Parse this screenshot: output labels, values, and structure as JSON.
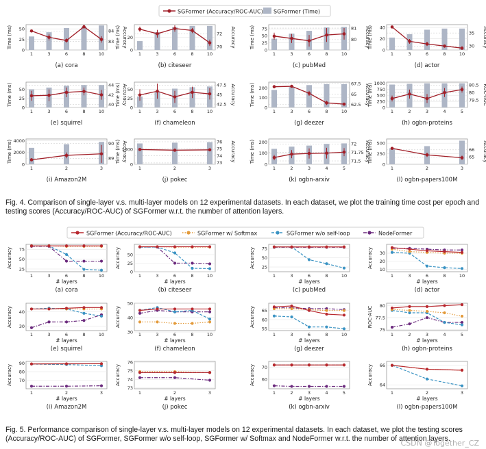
{
  "figure4": {
    "legend": {
      "line": "SGFormer (Accuracy/ROC-AUC)",
      "bar": "SGFormer (Time)"
    },
    "caption": "Fig. 4. Comparison of single-layer v.s. multi-layer models on 12 experimental datasets. In each dataset, we plot the training time cost per epoch and testing scores (Accuracy/ROC-AUC) of SGFormer w.r.t. the number of attention layers.",
    "colors": {
      "line": "#a11f28",
      "bar": "#aeb6c6"
    }
  },
  "figure5": {
    "legend": [
      "SGFormer (Accuracy/ROC-AUC)",
      "SGFormer w/ Softmax",
      "SGFormer w/o self-loop",
      "NodeFormer"
    ],
    "caption": "Fig. 5. Performance comparison of single-layer v.s. multi-layer models on 12 experimental datasets. In each dataset, we plot the testing scores (Accuracy/ROC-AUC) of SGFormer, SGFormer w/o self-loop, SGFormer w/ Softmax and NodeFormer w.r.t. the number of attention layers.",
    "xlabel": "# layers",
    "colors": {
      "sgformer": "#b8282f",
      "softmax": "#e39a3a",
      "noselfloop": "#3a93c3",
      "nodeformer": "#6b2a7d"
    }
  },
  "watermark": "CSDN @Together_CZ",
  "chart_data": [
    {
      "type": "bar",
      "title": "(a) cora",
      "x": [
        1,
        3,
        6,
        8,
        10
      ],
      "ylabel": "Time (ms)",
      "ylabel2": "Accuracy",
      "ylim": [
        0,
        60
      ],
      "yticks": [
        0,
        25,
        50
      ],
      "ylim2": [
        82.2,
        84.6
      ],
      "yticks2": [
        83,
        84
      ],
      "time": [
        32,
        42,
        52,
        55,
        58
      ],
      "score": [
        84.0,
        83.4,
        83.1,
        84.4,
        83.2
      ],
      "err": [
        0.1,
        0.3,
        0.2,
        0.2,
        0.3
      ]
    },
    {
      "type": "bar",
      "title": "(b) citeseer",
      "x": [
        1,
        3,
        6,
        8,
        10
      ],
      "ylabel": "Time (ms)",
      "ylabel2": "Accuracy",
      "ylim": [
        0,
        40
      ],
      "yticks": [
        0,
        20
      ],
      "ylim2": [
        69.5,
        73.4
      ],
      "yticks2": [
        70,
        72
      ],
      "time": [
        14,
        28,
        36,
        38,
        38
      ],
      "score": [
        72.7,
        72.0,
        72.8,
        72.5,
        70.6
      ],
      "err": [
        0.4,
        0.6,
        0.5,
        0.4,
        0.5
      ]
    },
    {
      "type": "bar",
      "title": "(c) pubMed",
      "x": [
        1,
        3,
        6,
        8,
        10
      ],
      "ylabel": "Time (ms)",
      "ylabel2": "Accuracy",
      "ylim": [
        0,
        90
      ],
      "yticks": [
        0,
        25,
        50,
        75
      ],
      "ylim2": [
        79.1,
        81.3
      ],
      "yticks2": [
        80,
        81
      ],
      "time": [
        40,
        58,
        68,
        80,
        82
      ],
      "score": [
        80.3,
        80.1,
        79.9,
        80.4,
        80.5
      ],
      "err": [
        0.3,
        0.4,
        0.5,
        0.6,
        0.5
      ]
    },
    {
      "type": "bar",
      "title": "(d) actor",
      "x": [
        1,
        3,
        6,
        8,
        10
      ],
      "ylabel": "Time (ms)",
      "ylabel2": "Accuracy",
      "ylim": [
        0,
        45
      ],
      "yticks": [
        0,
        20,
        40
      ],
      "ylim2": [
        28.5,
        38.2
      ],
      "yticks2": [
        30,
        35
      ],
      "time": [
        22,
        28,
        36,
        38,
        38
      ],
      "score": [
        37.3,
        31.8,
        30.8,
        30.0,
        29.2
      ],
      "err": [
        0.5,
        0.9,
        0.8,
        0.6,
        0.7
      ]
    },
    {
      "type": "bar",
      "title": "(e) squirrel",
      "x": [
        1,
        3,
        6,
        8,
        10
      ],
      "ylabel": "Time (ms)",
      "ylabel2": "Accuracy",
      "ylim": [
        0,
        70
      ],
      "yticks": [
        0,
        25,
        50
      ],
      "ylim2": [
        39.4,
        44.6
      ],
      "yticks2": [
        40,
        42,
        44
      ],
      "time": [
        50,
        55,
        60,
        62,
        62
      ],
      "score": [
        41.8,
        41.9,
        42.5,
        42.7,
        42.0
      ],
      "err": [
        1.0,
        1.2,
        1.0,
        0.8,
        1.0
      ]
    },
    {
      "type": "bar",
      "title": "(f) chameleon",
      "x": [
        1,
        3,
        6,
        8,
        10
      ],
      "ylabel": "Time (ms)",
      "ylabel2": "Accuracy",
      "ylim": [
        0,
        70
      ],
      "yticks": [
        0,
        25,
        50
      ],
      "ylim2": [
        41.6,
        48.3
      ],
      "yticks2": [
        42.5,
        45.0,
        47.5
      ],
      "time": [
        30,
        42,
        52,
        56,
        58
      ],
      "score": [
        44.9,
        45.9,
        44.4,
        45.6,
        45.2
      ],
      "err": [
        1.5,
        2.0,
        1.6,
        1.5,
        1.5
      ]
    },
    {
      "type": "bar",
      "title": "(g) deezer",
      "x": [
        1,
        3,
        6,
        8,
        10
      ],
      "ylabel": "Time (ms)",
      "ylabel2": "Accuracy",
      "ylim": [
        0,
        260
      ],
      "yticks": [
        0,
        100,
        200
      ],
      "ylim2": [
        61.8,
        67.9
      ],
      "yticks2": [
        62.5,
        65.0,
        67.5
      ],
      "time": [
        180,
        210,
        230,
        240,
        240
      ],
      "score": [
        66.8,
        66.9,
        65.2,
        62.9,
        62.6
      ],
      "err": [
        0.4,
        0.3,
        0.6,
        0.5,
        0.3
      ]
    },
    {
      "type": "bar",
      "title": "(h) ogbn-proteins",
      "x": [
        1,
        2,
        3,
        4,
        5
      ],
      "ylabel": "Time (ms)",
      "ylabel2": "ROC-AUC",
      "ylim": [
        0,
        1050
      ],
      "yticks": [
        0,
        250,
        500,
        750,
        1000
      ],
      "ylim2": [
        79.0,
        80.7
      ],
      "yticks2": [
        79.5,
        80.0,
        80.5
      ],
      "time": [
        950,
        980,
        1000,
        1000,
        1000
      ],
      "score": [
        79.6,
        79.9,
        79.6,
        80.0,
        80.2
      ],
      "err": [
        0.2,
        0.3,
        0.3,
        0.3,
        0.2
      ]
    },
    {
      "type": "bar",
      "title": "(i) Amazon2M",
      "x": [
        1,
        2,
        3
      ],
      "ylabel": "Time (ms)",
      "ylabel2": "Accuracy",
      "ylim": [
        0,
        4300
      ],
      "yticks": [
        0,
        2000,
        4000
      ],
      "ylim2": [
        88.6,
        90.3
      ],
      "yticks2": [
        89,
        90
      ],
      "time": [
        2800,
        3400,
        3800
      ],
      "score": [
        88.9,
        89.2,
        89.3
      ],
      "err": [
        0.1,
        0.2,
        0.6
      ]
    },
    {
      "type": "bar",
      "title": "(j) pokec",
      "x": [
        1,
        2,
        3
      ],
      "ylabel": "Time (ms)",
      "ylabel2": "Accuracy",
      "ylim": [
        0,
        1700
      ],
      "yticks": [
        0,
        1000
      ],
      "ylim2": [
        72.8,
        76.4
      ],
      "yticks2": [
        73,
        74,
        75,
        76
      ],
      "time": [
        1400,
        1450,
        1480
      ],
      "score": [
        74.9,
        74.8,
        74.85
      ],
      "err": [
        0.05,
        0.05,
        0.05
      ]
    },
    {
      "type": "bar",
      "title": "(k) ogbn-arxiv",
      "x": [
        1,
        2,
        3,
        4,
        5
      ],
      "ylabel": "Time (ms)",
      "ylabel2": "Accuracy",
      "ylim": [
        0,
        230
      ],
      "yticks": [
        0,
        100,
        200
      ],
      "ylim2": [
        71.4,
        72.15
      ],
      "yticks2": [
        71.5,
        71.75,
        72.0
      ],
      "time": [
        140,
        160,
        170,
        185,
        190
      ],
      "score": [
        71.6,
        71.7,
        71.72,
        71.73,
        71.76
      ],
      "err": [
        0.08,
        0.12,
        0.15,
        0.16,
        0.12
      ]
    },
    {
      "type": "bar",
      "title": "(l) ogbn-papers100M",
      "x": [
        1,
        2,
        3
      ],
      "ylabel": "Time (ms)",
      "ylabel2": "Accuracy",
      "ylim": [
        0,
        600
      ],
      "yticks": [
        0,
        250,
        500
      ],
      "ylim2": [
        64.0,
        67.5
      ],
      "yticks2": [
        65.0,
        66.0
      ],
      "time": [
        380,
        430,
        560
      ],
      "score": [
        66.2,
        65.3,
        64.9
      ],
      "err": [
        0.2,
        0.3,
        0.3
      ]
    },
    {
      "type": "line",
      "title": "(a) cora",
      "x": [
        1,
        3,
        6,
        8,
        10
      ],
      "ylabel": "Accuracy",
      "ylim": [
        18,
        88
      ],
      "yticks": [
        25,
        50,
        75
      ],
      "sgformer": [
        84,
        84,
        84,
        84,
        84
      ],
      "softmax": [
        84,
        84,
        83,
        83,
        83
      ],
      "noselfloop": [
        84,
        84,
        62,
        24,
        22
      ],
      "nodeformer": [
        83,
        83,
        45,
        45,
        45
      ]
    },
    {
      "type": "line",
      "title": "(b) citeseer",
      "x": [
        1,
        3,
        6,
        8,
        10
      ],
      "ylabel": "Accuracy",
      "ylim": [
        0,
        80
      ],
      "yticks": [
        0,
        25,
        50
      ],
      "sgformer": [
        73,
        73,
        73,
        73,
        73
      ],
      "softmax": [
        73,
        73,
        72,
        72,
        72
      ],
      "noselfloop": [
        72,
        72,
        55,
        10,
        9
      ],
      "nodeformer": [
        72,
        72,
        25,
        25,
        23
      ]
    },
    {
      "type": "line",
      "title": "(c) pubMed",
      "x": [
        1,
        3,
        6,
        8,
        10
      ],
      "ylabel": "Accuracy",
      "ylim": [
        12,
        87
      ],
      "yticks": [
        25,
        50,
        75
      ],
      "sgformer": [
        80,
        80,
        80,
        80,
        80
      ],
      "softmax": [
        80,
        80,
        80,
        80,
        80
      ],
      "noselfloop": [
        80,
        80,
        45,
        34,
        22
      ],
      "nodeformer": [
        79,
        79,
        79,
        79,
        79
      ]
    },
    {
      "type": "line",
      "title": "(d) actor",
      "x": [
        1,
        3,
        6,
        8,
        10
      ],
      "ylabel": "Accuracy",
      "ylim": [
        7,
        41
      ],
      "yticks": [
        10,
        20,
        30
      ],
      "sgformer": [
        37,
        35,
        33,
        32,
        31
      ],
      "softmax": [
        35,
        32,
        31,
        30,
        30
      ],
      "noselfloop": [
        31,
        30,
        14,
        12,
        11
      ],
      "nodeformer": [
        36,
        36,
        35,
        34,
        34
      ]
    },
    {
      "type": "line",
      "title": "(e) squirrel",
      "x": [
        1,
        3,
        6,
        8,
        10
      ],
      "ylabel": "Accuracy",
      "ylim": [
        27,
        46
      ],
      "yticks": [
        30,
        40
      ],
      "sgformer": [
        42,
        42,
        42.5,
        43,
        43
      ],
      "softmax": [
        42,
        42,
        42,
        42,
        42
      ],
      "noselfloop": [
        42,
        42.5,
        42,
        39,
        37
      ],
      "nodeformer": [
        29,
        33,
        33,
        34,
        38
      ]
    },
    {
      "type": "line",
      "title": "(f) chameleon",
      "x": [
        1,
        3,
        6,
        8,
        10
      ],
      "ylabel": "Accuracy",
      "ylim": [
        31,
        50
      ],
      "yticks": [
        30,
        40,
        50
      ],
      "sgformer": [
        45,
        46,
        46,
        46,
        46
      ],
      "softmax": [
        37,
        37,
        36,
        36,
        37
      ],
      "noselfloop": [
        45,
        47,
        44,
        45,
        39
      ],
      "nodeformer": [
        43,
        45,
        44,
        44,
        44
      ]
    },
    {
      "type": "line",
      "title": "(g) deezer",
      "x": [
        1,
        3,
        6,
        8,
        10
      ],
      "ylabel": "Accuracy",
      "ylim": [
        54,
        69
      ],
      "yticks": [
        55,
        60,
        65
      ],
      "sgformer": [
        67,
        67.5,
        65,
        63,
        62.5
      ],
      "softmax": [
        66,
        66,
        65.5,
        65,
        65
      ],
      "noselfloop": [
        62,
        61.5,
        56,
        56,
        55
      ],
      "nodeformer": [
        66.5,
        66.5,
        66,
        66,
        65.5
      ]
    },
    {
      "type": "line",
      "title": "(h) ogbn-proteins",
      "x": [
        1,
        2,
        3,
        4,
        5
      ],
      "ylabel": "ROC-AUC",
      "ylim": [
        74.8,
        80.5
      ],
      "yticks": [
        75.0,
        77.5,
        80.0
      ],
      "sgformer": [
        79.5,
        79.8,
        79.8,
        80.0,
        80.2
      ],
      "softmax": [
        79.2,
        79.0,
        78.8,
        78.5,
        77.8
      ],
      "noselfloop": [
        79.0,
        78.5,
        78.5,
        76.5,
        76.0
      ],
      "nodeformer": [
        75.5,
        76.2,
        77.5,
        76.5,
        76.5
      ]
    },
    {
      "type": "line",
      "title": "(i) Amazon2M",
      "x": [
        1,
        2,
        3
      ],
      "ylabel": "Accuracy",
      "ylim": [
        60,
        92
      ],
      "yticks": [
        70,
        80,
        90
      ],
      "sgformer": [
        89,
        89.2,
        89.3
      ],
      "softmax": [
        89,
        89.1,
        89.2
      ],
      "noselfloop": [
        88.8,
        88.3,
        87.0
      ],
      "nodeformer": [
        63,
        63,
        63.5
      ]
    },
    {
      "type": "line",
      "title": "(j) pokec",
      "x": [
        1,
        2,
        3
      ],
      "ylabel": "Accuracy",
      "ylim": [
        72.9,
        76.1
      ],
      "yticks": [
        73,
        74,
        75,
        76
      ],
      "sgformer": [
        74.8,
        74.8,
        74.8
      ],
      "softmax": [
        74.9,
        74.9,
        74.8
      ],
      "noselfloop": [
        74.8,
        74.8,
        74.8
      ],
      "nodeformer": [
        74.2,
        74.2,
        73.9
      ]
    },
    {
      "type": "line",
      "title": "(k) ogbn-arxiv",
      "x": [
        1,
        2,
        3,
        4,
        5
      ],
      "ylabel": "Accuracy",
      "ylim": [
        52,
        75
      ],
      "yticks": [
        60,
        70
      ],
      "sgformer": [
        72,
        72,
        72,
        72,
        72
      ],
      "softmax": [
        72,
        72,
        72,
        72,
        72
      ],
      "noselfloop": [
        72,
        72,
        72,
        72,
        72
      ],
      "nodeformer": [
        54.5,
        54,
        54,
        54,
        54
      ]
    },
    {
      "type": "line",
      "title": "(l) ogbn-papers100M",
      "x": [
        1,
        2,
        3
      ],
      "ylabel": "Accuracy",
      "ylim": [
        63.6,
        66.4
      ],
      "yticks": [
        64,
        66
      ],
      "sgformer": [
        66.0,
        65.6,
        65.5
      ],
      "softmax": [
        66.0,
        65.6,
        65.5
      ],
      "noselfloop": [
        66.0,
        64.6,
        63.9
      ],
      "nodeformer": []
    }
  ]
}
